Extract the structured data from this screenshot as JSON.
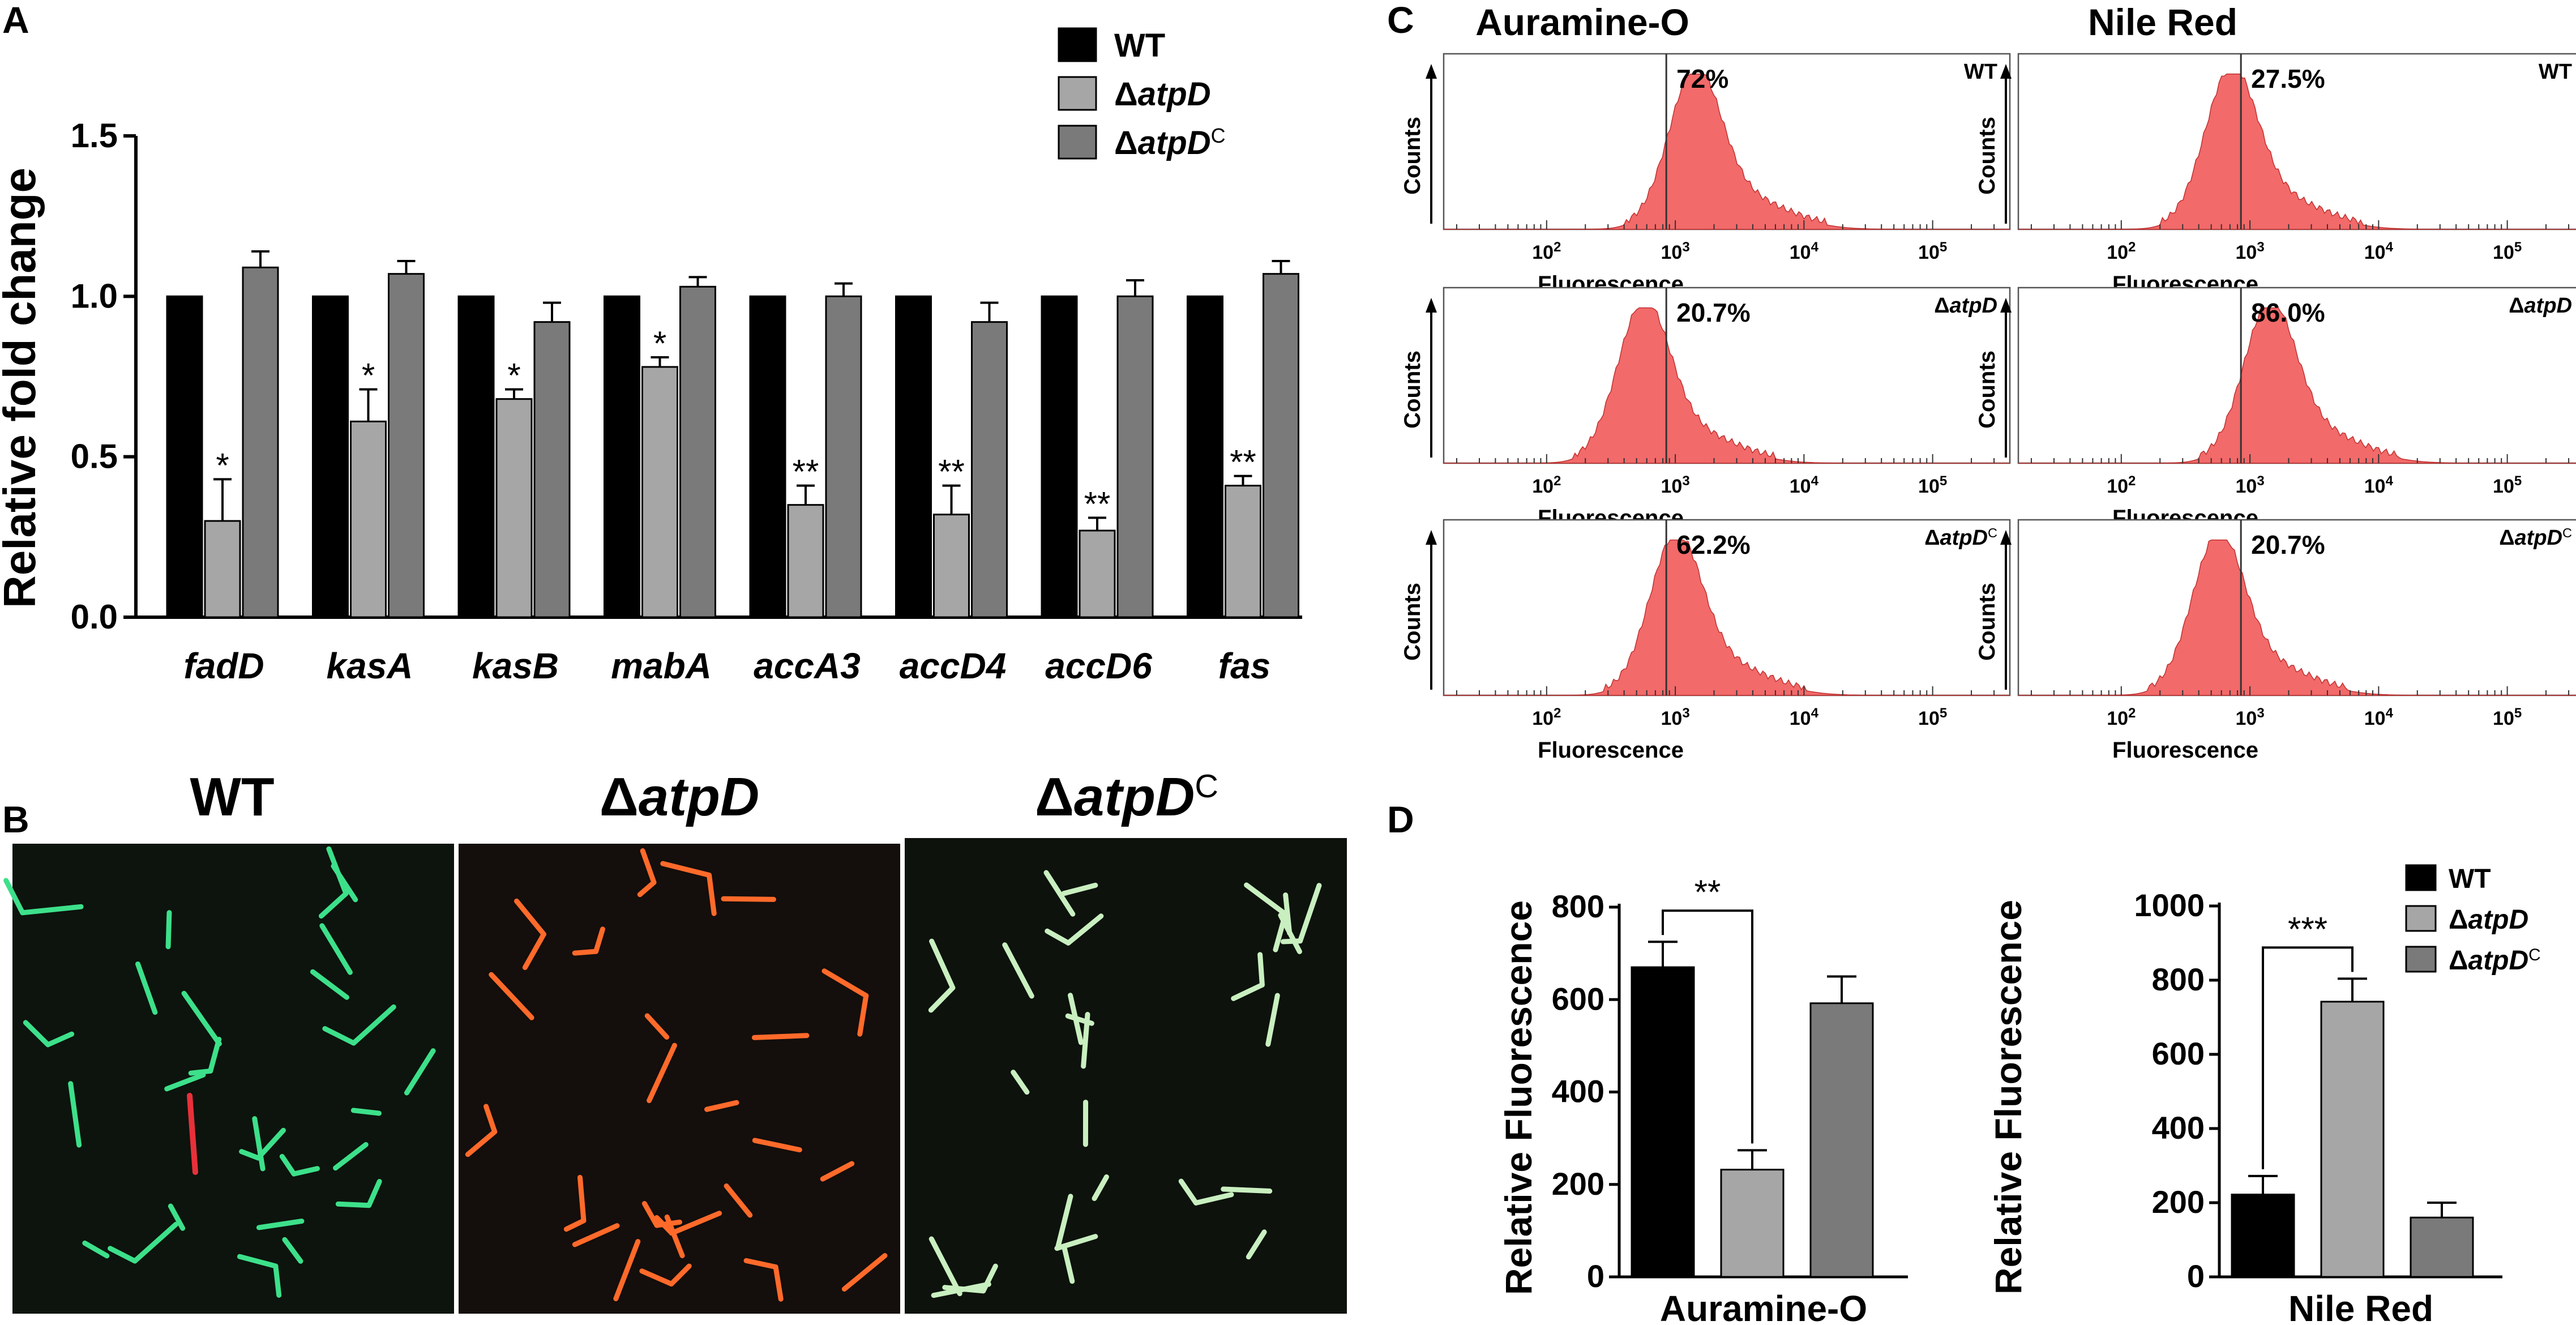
{
  "panels": {
    "A": "A",
    "B": "B",
    "C": "C",
    "D": "D"
  },
  "colors": {
    "wt": "#000000",
    "atpD": "#a6a6a6",
    "atpDc": "#7a7a7a",
    "facs_fill": "#f26a6a",
    "facs_stroke": "#c03030"
  },
  "chart_data": [
    {
      "id": "A",
      "type": "bar",
      "ylabel": "Relative fold change",
      "ylim": [
        0,
        1.5
      ],
      "yticks": [
        "0.0",
        "0.5",
        "1.0",
        "1.5"
      ],
      "categories": [
        "fadD",
        "kasA",
        "kasB",
        "mabA",
        "accA3",
        "accD4",
        "accD6",
        "fas"
      ],
      "legend": [
        {
          "prefix": "WT",
          "italic": "",
          "sup": ""
        },
        {
          "prefix": "Δ",
          "italic": "atpD",
          "sup": ""
        },
        {
          "prefix": "Δ",
          "italic": "atpD",
          "sup": "C"
        }
      ],
      "series": [
        {
          "name": "WT",
          "values": [
            1.0,
            1.0,
            1.0,
            1.0,
            1.0,
            1.0,
            1.0,
            1.0
          ],
          "errors": [
            0,
            0,
            0,
            0,
            0,
            0,
            0,
            0
          ]
        },
        {
          "name": "ΔatpD",
          "values": [
            0.3,
            0.61,
            0.68,
            0.78,
            0.35,
            0.32,
            0.27,
            0.41
          ],
          "errors": [
            0.13,
            0.1,
            0.03,
            0.03,
            0.06,
            0.09,
            0.04,
            0.03
          ]
        },
        {
          "name": "ΔatpDC",
          "values": [
            1.09,
            1.07,
            0.92,
            1.03,
            1.0,
            0.92,
            1.0,
            1.07
          ],
          "errors": [
            0.05,
            0.04,
            0.06,
            0.03,
            0.04,
            0.06,
            0.05,
            0.04
          ]
        }
      ],
      "significance": [
        "*",
        "*",
        "*",
        "*",
        "**",
        "**",
        "**",
        "**"
      ]
    },
    {
      "id": "D1",
      "type": "bar",
      "ylabel": "Relative Fluorescence",
      "xlabel": "Auramine-O",
      "ylim": [
        0,
        800
      ],
      "yticks": [
        "0",
        "200",
        "400",
        "600",
        "800"
      ],
      "values": [
        670,
        232,
        592
      ],
      "errors": [
        55,
        42,
        58
      ],
      "significance": "**"
    },
    {
      "id": "D2",
      "type": "bar",
      "ylabel": "Relative Fluorescence",
      "xlabel": "Nile Red",
      "ylim": [
        0,
        1000
      ],
      "yticks": [
        "0",
        "200",
        "400",
        "600",
        "800",
        "1000"
      ],
      "values": [
        222,
        742,
        160
      ],
      "errors": [
        50,
        62,
        40
      ],
      "significance": "***",
      "legend": [
        {
          "prefix": "WT",
          "italic": "",
          "sup": ""
        },
        {
          "prefix": "Δ",
          "italic": "atpD",
          "sup": ""
        },
        {
          "prefix": "Δ",
          "italic": "atpD",
          "sup": "C"
        }
      ]
    }
  ],
  "microscopy": {
    "titles": [
      {
        "prefix": "WT",
        "italic": "",
        "sup": ""
      },
      {
        "prefix": "Δ",
        "italic": "atpD",
        "sup": ""
      },
      {
        "prefix": "Δ",
        "italic": "atpD",
        "sup": "C"
      }
    ]
  },
  "facs": {
    "column_titles": [
      "Auramine-O",
      "Nile Red"
    ],
    "ylabel": "Counts",
    "xlabel": "Fluorescence",
    "xticks": [
      "10",
      "10",
      "10",
      "10"
    ],
    "xtick_exps": [
      "2",
      "3",
      "4",
      "5"
    ],
    "histograms": [
      {
        "col": 0,
        "row": 0,
        "percent": "72%",
        "strain": {
          "prefix": "WT",
          "italic": "",
          "sup": ""
        },
        "peak_decade": 3.15
      },
      {
        "col": 0,
        "row": 1,
        "percent": "20.7%",
        "strain": {
          "prefix": "Δ",
          "italic": "atpD",
          "sup": ""
        },
        "peak_decade": 2.75
      },
      {
        "col": 0,
        "row": 2,
        "percent": "62.2%",
        "strain": {
          "prefix": "Δ",
          "italic": "atpD",
          "sup": "C"
        },
        "peak_decade": 3.0
      },
      {
        "col": 1,
        "row": 0,
        "percent": "27.5%",
        "strain": {
          "prefix": "WT",
          "italic": "",
          "sup": ""
        },
        "peak_decade": 2.85
      },
      {
        "col": 1,
        "row": 1,
        "percent": "86.0%",
        "strain": {
          "prefix": "Δ",
          "italic": "atpD",
          "sup": ""
        },
        "peak_decade": 3.15
      },
      {
        "col": 1,
        "row": 2,
        "percent": "20.7%",
        "strain": {
          "prefix": "Δ",
          "italic": "atpD",
          "sup": "C"
        },
        "peak_decade": 2.75
      }
    ]
  }
}
